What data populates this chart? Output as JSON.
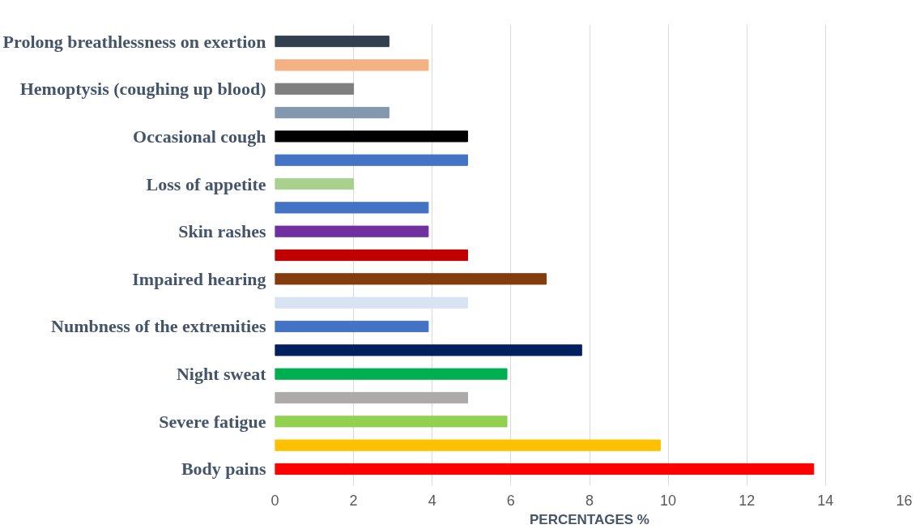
{
  "chart_data": {
    "type": "bar",
    "orientation": "horizontal",
    "xlabel": "PERCENTAGES %",
    "categories": [
      "Prolong breathlessness on exertion",
      null,
      "Hemoptysis (coughing up blood)",
      null,
      "Occasional cough",
      null,
      "Loss of appetite",
      null,
      "Skin rashes",
      null,
      "Impaired hearing",
      null,
      "Numbness of the extremities",
      null,
      "Night sweat",
      null,
      "Severe fatigue",
      null,
      "Body pains"
    ],
    "values": [
      2.9,
      3.9,
      2.0,
      2.9,
      4.9,
      4.9,
      2.0,
      3.9,
      3.9,
      4.9,
      6.9,
      4.9,
      3.9,
      7.8,
      5.9,
      4.9,
      5.9,
      9.8,
      13.7
    ],
    "colors": [
      "#323f4f",
      "#f4b183",
      "#7f7f7f",
      "#8497b0",
      "#000000",
      "#4472c4",
      "#a9d18e",
      "#4472c4",
      "#7030a0",
      "#c00000",
      "#843c0c",
      "#dae3f3",
      "#4472c4",
      "#002060",
      "#00b050",
      "#aeaaaa",
      "#92d050",
      "#ffc000",
      "#ff0000"
    ],
    "xlim": [
      0,
      16
    ],
    "xticks": [
      0,
      2,
      4,
      6,
      8,
      10,
      12,
      14,
      16
    ],
    "grid": "x"
  }
}
